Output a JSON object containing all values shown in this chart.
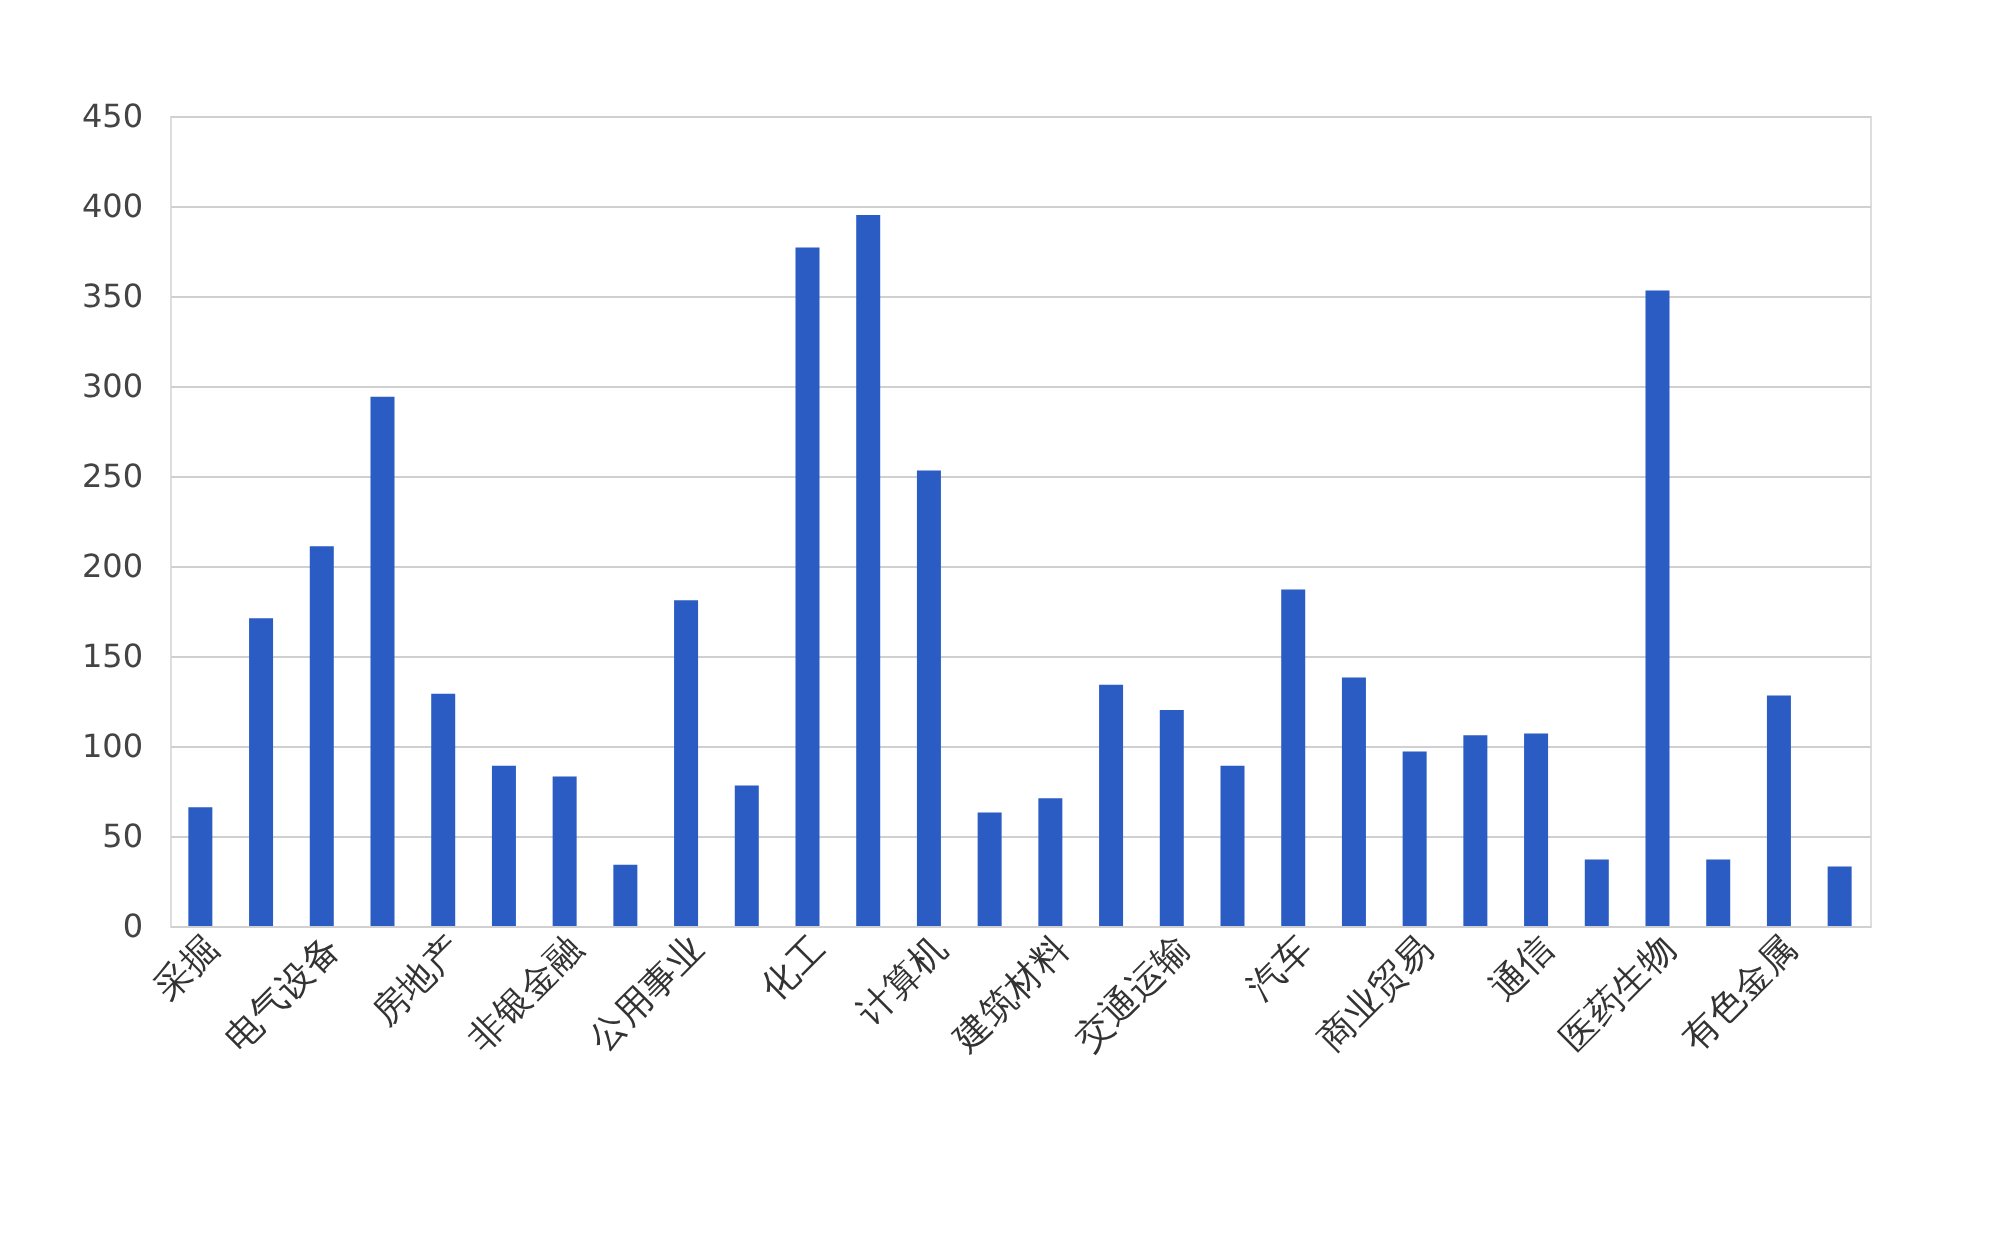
{
  "chart_data": {
    "type": "bar",
    "categories": [
      "采掘",
      null,
      "电气设备",
      null,
      "房地产",
      null,
      "非银金融",
      null,
      "公用事业",
      null,
      "化工",
      null,
      "计算机",
      null,
      "建筑材料",
      null,
      "交通运输",
      null,
      "汽车",
      null,
      "商业贸易",
      null,
      "通信",
      null,
      "医药生物",
      null,
      "有色金属",
      null
    ],
    "values": [
      66,
      171,
      211,
      294,
      129,
      89,
      83,
      34,
      181,
      78,
      377,
      395,
      253,
      63,
      71,
      134,
      120,
      89,
      187,
      138,
      97,
      106,
      107,
      37,
      353,
      37,
      128,
      33
    ],
    "color": "#2a5cc4",
    "ylim": [
      0,
      450
    ],
    "yticks": [
      0,
      50,
      100,
      150,
      200,
      250,
      300,
      350,
      400,
      450
    ],
    "grid": "y"
  }
}
